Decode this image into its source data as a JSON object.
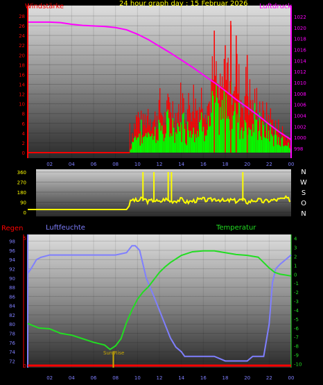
{
  "header": {
    "title": "24 hour graph day : 15 Februar 2026",
    "wind_label": "Windstärke",
    "pressure_label": "Luftdruck"
  },
  "colors": {
    "wind_gust": "#ff0000",
    "wind_avg": "#00ff00",
    "pressure": "#ff00ff",
    "direction": "#ffff00",
    "humidity": "#7f7fff",
    "temperature": "#22dd22",
    "rain": "#ff0000",
    "title": "#ffff00",
    "sunrise": "#ccaa00"
  },
  "x_ticks": [
    "02",
    "04",
    "06",
    "08",
    "10",
    "12",
    "14",
    "16",
    "18",
    "20",
    "22",
    "00"
  ],
  "panel1": {
    "wind_ticks": [
      "0",
      "2",
      "4",
      "6",
      "8",
      "10",
      "12",
      "14",
      "16",
      "18",
      "20",
      "22",
      "24",
      "26",
      "28"
    ],
    "pressure_ticks": [
      "998",
      "1000",
      "1002",
      "1004",
      "1006",
      "1008",
      "1010",
      "1012",
      "1014",
      "1016",
      "1018",
      "1020",
      "1022"
    ]
  },
  "panel2": {
    "dir_ticks": [
      "0",
      "90",
      "180",
      "270",
      "360"
    ],
    "compass": [
      "N",
      "W",
      "S",
      "O",
      "N"
    ]
  },
  "panel3": {
    "rain_label": "Regen",
    "humidity_label": "Luftfeuchte",
    "temperature_label": "Temperatur",
    "sunrise_label": "Sun Rise",
    "humidity_ticks": [
      "72",
      "74",
      "76",
      "78",
      "80",
      "82",
      "84",
      "86",
      "88",
      "90",
      "92",
      "94",
      "96",
      "98"
    ],
    "temp_ticks": [
      "4",
      "3",
      "2",
      "1",
      "0",
      "-1",
      "-2",
      "-3",
      "-4",
      "-5",
      "-6",
      "-7",
      "-8",
      "-9",
      "-10"
    ],
    "rain_ticks": [
      "0",
      "5"
    ]
  },
  "chart_data": [
    {
      "type": "line",
      "title": "24 hour graph day : 15 Februar 2026",
      "x_unit": "hour",
      "xlim": [
        0,
        24
      ],
      "series": [
        {
          "name": "Windstärke",
          "axis": "left",
          "ylim": [
            0,
            29
          ],
          "x": [
            0,
            9.3,
            9.5,
            10,
            10.5,
            11,
            11.5,
            12,
            12.5,
            13,
            13.5,
            14,
            14.5,
            15,
            15.5,
            16,
            16.5,
            17,
            17.5,
            18,
            18.5,
            19,
            19.5,
            20,
            20.5,
            21,
            21.5,
            22,
            22.5,
            23,
            23.5,
            24
          ],
          "y": [
            0,
            0,
            6,
            11,
            8,
            13,
            9,
            14,
            10,
            15,
            11,
            16,
            12,
            17,
            13,
            18,
            14,
            25,
            16,
            22,
            27,
            24,
            15,
            20,
            13,
            16,
            10,
            11,
            8,
            7,
            5,
            4
          ]
        },
        {
          "name": "Luftdruck",
          "axis": "right",
          "ylim": [
            997,
            1023
          ],
          "x": [
            0,
            1,
            2,
            3,
            4,
            5,
            6,
            7,
            8,
            9,
            10,
            11,
            12,
            13,
            14,
            15,
            16,
            17,
            18,
            19,
            20,
            21,
            22,
            23,
            24
          ],
          "y": [
            1021,
            1021,
            1021,
            1020.9,
            1020.6,
            1020.4,
            1020.3,
            1020.2,
            1020,
            1019.6,
            1018.8,
            1017.8,
            1016.6,
            1015.4,
            1014.1,
            1012.8,
            1011.4,
            1010,
            1008.5,
            1006.9,
            1005.5,
            1004,
            1002.4,
            1000.9,
            999.6
          ]
        }
      ]
    },
    {
      "type": "line",
      "title": "",
      "x_unit": "hour",
      "xlim": [
        0,
        24
      ],
      "ylim": [
        0,
        360
      ],
      "series": [
        {
          "name": "",
          "x": [
            0,
            9,
            9.5,
            10,
            10.5,
            11,
            11.5,
            12,
            12.5,
            13,
            13.5,
            14,
            14.5,
            15,
            15.5,
            16,
            16.5,
            17,
            17.5,
            18,
            18.5,
            19,
            19.5,
            20,
            20.5,
            21,
            21.5,
            22,
            22.5,
            23,
            23.5,
            24
          ],
          "y": [
            25,
            25,
            115,
            100,
            125,
            95,
            110,
            90,
            120,
            100,
            105,
            115,
            90,
            100,
            110,
            115,
            105,
            120,
            115,
            95,
            110,
            100,
            115,
            90,
            105,
            110,
            95,
            105,
            110,
            115,
            125,
            105
          ]
        }
      ]
    },
    {
      "type": "line",
      "title": "",
      "x_unit": "hour",
      "xlim": [
        0,
        24
      ],
      "series": [
        {
          "name": "Luftfeuchte",
          "axis": "left",
          "ylim": [
            71,
            99
          ],
          "x": [
            0,
            0.3,
            0.8,
            1.2,
            2,
            3,
            4,
            5,
            6,
            7,
            8,
            9,
            9.5,
            9.8,
            10.2,
            10.8,
            11.5,
            12,
            12.5,
            13,
            13.5,
            14,
            14.3,
            15,
            16,
            17,
            18,
            19,
            20,
            20.5,
            21,
            21.5,
            22,
            22.3,
            22.6,
            23,
            23.5,
            24
          ],
          "y": [
            91,
            92,
            94,
            94.5,
            95,
            95,
            95,
            95,
            95,
            95,
            95,
            95.5,
            97,
            97,
            96,
            90,
            86,
            83,
            80,
            77,
            75,
            74,
            73,
            73,
            73,
            73,
            72,
            72,
            72,
            73,
            73,
            73,
            80,
            89,
            92,
            93,
            94,
            95
          ]
        },
        {
          "name": "Temperatur",
          "axis": "right",
          "ylim": [
            -10.2,
            4.2
          ],
          "x": [
            0,
            1,
            2,
            3,
            4,
            5,
            6,
            7,
            7.5,
            8,
            8.5,
            9,
            9.5,
            10,
            10.5,
            11,
            11.5,
            12,
            12.5,
            13,
            13.5,
            14,
            14.5,
            15,
            16,
            17,
            18,
            19,
            20,
            21,
            22,
            22.5,
            23,
            23.5,
            24
          ],
          "y": [
            -5.5,
            -6,
            -6.1,
            -6.6,
            -6.8,
            -7.2,
            -7.6,
            -7.9,
            -8.4,
            -8,
            -7.2,
            -5.4,
            -4,
            -2.8,
            -2,
            -1.4,
            -0.6,
            0.2,
            0.8,
            1.3,
            1.7,
            2.1,
            2.3,
            2.5,
            2.6,
            2.6,
            2.4,
            2.2,
            2.1,
            1.9,
            0.7,
            0.2,
            0,
            -0.1,
            -0.2
          ]
        },
        {
          "name": "Regen",
          "axis": "rain",
          "ylim": [
            0,
            5
          ],
          "x": [
            0,
            24
          ],
          "y": [
            0,
            0
          ]
        }
      ],
      "annotations": [
        {
          "label": "Sun Rise",
          "x": 7.8
        }
      ]
    }
  ]
}
